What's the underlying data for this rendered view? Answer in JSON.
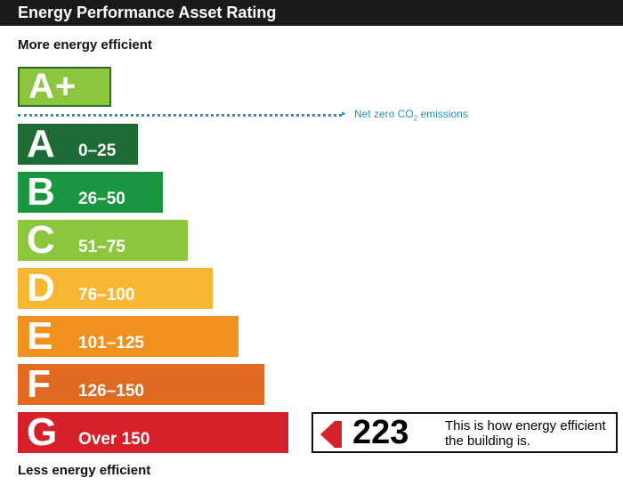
{
  "header": {
    "title": "Energy Performance Asset Rating"
  },
  "labels": {
    "top": "More energy efficient",
    "bottom": "Less energy efficient"
  },
  "net_zero": {
    "letter": "A+",
    "text_before": "Net zero CO",
    "subscript": "2",
    "text_after": " emissions",
    "color": "#2a8fbd"
  },
  "chart_data": {
    "type": "bar",
    "title": "Energy Performance Asset Rating",
    "categories": [
      "A",
      "B",
      "C",
      "D",
      "E",
      "F",
      "G"
    ],
    "ranges": [
      "0–25",
      "26–50",
      "51–75",
      "76–100",
      "101–125",
      "126–150",
      "Over 150"
    ],
    "colors": [
      "#1f6b35",
      "#1a9640",
      "#8cc63f",
      "#f7b733",
      "#f0901e",
      "#e06a22",
      "#d6202a"
    ],
    "rating_value": 223,
    "rating_band": "G"
  },
  "indicator": {
    "score": "223",
    "caption": "This is how energy efficient the building is.",
    "color": "#d6202a"
  }
}
